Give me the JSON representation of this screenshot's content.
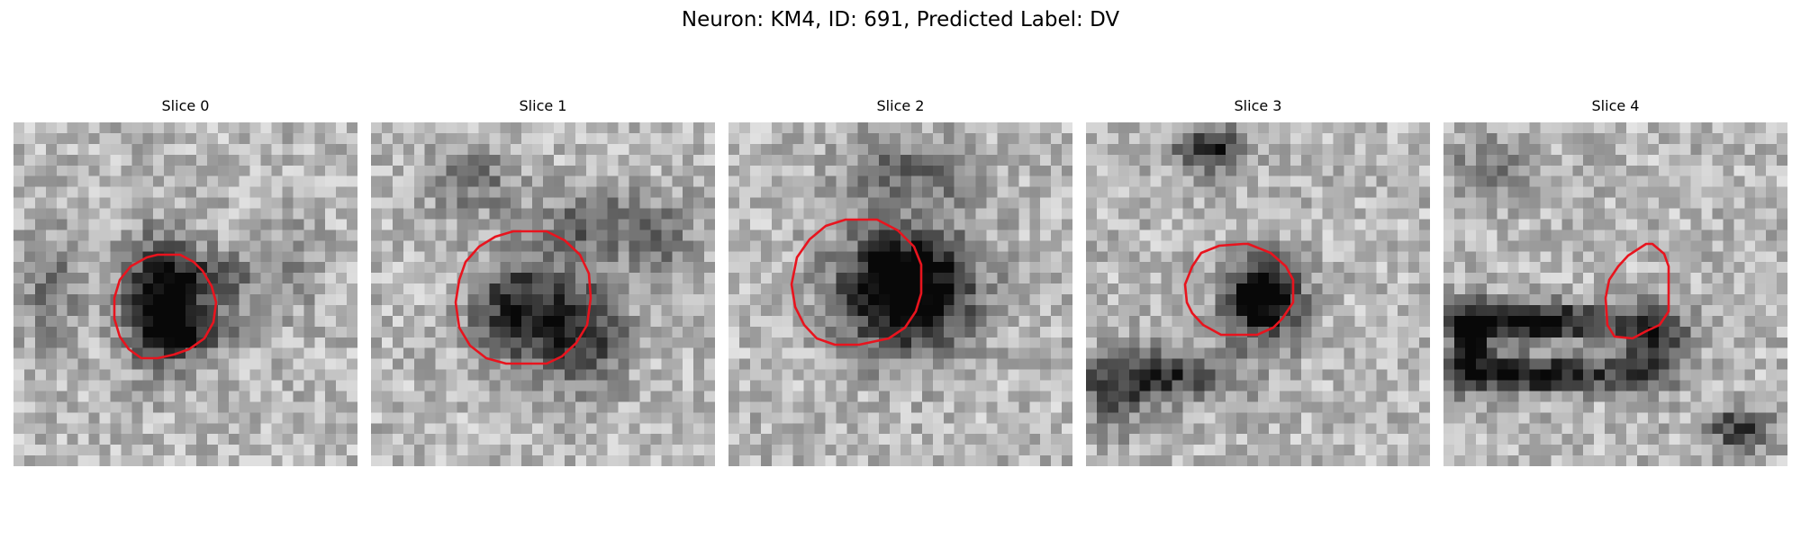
{
  "figure": {
    "title": "Neuron: KM4, ID: 691, Predicted Label: DV"
  },
  "panels": [
    {
      "title": "Slice 0"
    },
    {
      "title": "Slice 1"
    },
    {
      "title": "Slice 2"
    },
    {
      "title": "Slice 3"
    },
    {
      "title": "Slice 4"
    }
  ],
  "colors": {
    "contour": "#e8141e"
  }
}
